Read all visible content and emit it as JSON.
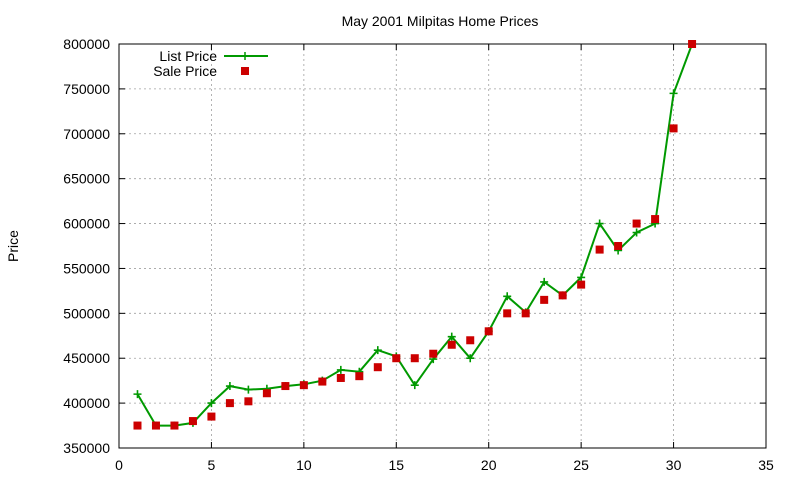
{
  "chart_data": {
    "type": "line",
    "title": "May 2001 Milpitas Home Prices",
    "xlabel": "",
    "ylabel": "Price",
    "xlim": [
      0,
      35
    ],
    "ylim": [
      350000,
      800000
    ],
    "xticks": [
      0,
      5,
      10,
      15,
      20,
      25,
      30,
      35
    ],
    "yticks": [
      350000,
      400000,
      450000,
      500000,
      550000,
      600000,
      650000,
      700000,
      750000,
      800000
    ],
    "grid": true,
    "legend_position": "top-left",
    "series": [
      {
        "name": "List Price",
        "style": "line-with-plus-markers",
        "color": "#009900",
        "x": [
          1,
          2,
          3,
          4,
          5,
          6,
          7,
          8,
          9,
          10,
          11,
          12,
          13,
          14,
          15,
          16,
          17,
          18,
          19,
          20,
          21,
          22,
          23,
          24,
          25,
          26,
          27,
          28,
          29,
          30,
          31
        ],
        "values": [
          410000,
          375000,
          375000,
          378000,
          400000,
          419000,
          415000,
          416000,
          419000,
          421000,
          425000,
          437000,
          435000,
          459000,
          452000,
          420000,
          449000,
          474000,
          450000,
          480000,
          519000,
          501000,
          535000,
          520000,
          540000,
          600000,
          570000,
          590000,
          600000,
          745000,
          800000
        ]
      },
      {
        "name": "Sale Price",
        "style": "square-markers",
        "color": "#cc0000",
        "x": [
          1,
          2,
          3,
          4,
          5,
          6,
          7,
          8,
          9,
          10,
          11,
          12,
          13,
          14,
          15,
          16,
          17,
          18,
          19,
          20,
          21,
          22,
          23,
          24,
          25,
          26,
          27,
          28,
          29,
          30,
          31
        ],
        "values": [
          375000,
          375000,
          375000,
          380000,
          385000,
          400000,
          402000,
          411000,
          419000,
          420000,
          424000,
          428000,
          430000,
          440000,
          450000,
          450000,
          455000,
          465000,
          470000,
          480000,
          500000,
          500000,
          515000,
          520000,
          532000,
          571000,
          575000,
          600000,
          605000,
          706000,
          800000
        ]
      }
    ]
  }
}
